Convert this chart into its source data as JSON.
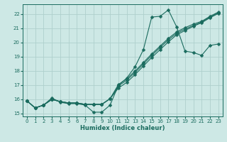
{
  "xlabel": "Humidex (Indice chaleur)",
  "xlim": [
    -0.5,
    23.5
  ],
  "ylim": [
    14.8,
    22.7
  ],
  "yticks": [
    15,
    16,
    17,
    18,
    19,
    20,
    21,
    22
  ],
  "xticks": [
    0,
    1,
    2,
    3,
    4,
    5,
    6,
    7,
    8,
    9,
    10,
    11,
    12,
    13,
    14,
    15,
    16,
    17,
    18,
    19,
    20,
    21,
    22,
    23
  ],
  "background_color": "#cde8e5",
  "grid_color": "#aed0cc",
  "line_color": "#1a6b5e",
  "series": [
    {
      "x": [
        0,
        1,
        2,
        3,
        4,
        5,
        6,
        7,
        8,
        9,
        10,
        11,
        12,
        13,
        14,
        15,
        16,
        17,
        18,
        19,
        20,
        21,
        22,
        23
      ],
      "y": [
        15.9,
        15.4,
        15.6,
        16.1,
        15.8,
        15.7,
        15.7,
        15.6,
        15.1,
        15.1,
        15.6,
        17.0,
        17.5,
        18.3,
        19.5,
        21.8,
        21.85,
        22.3,
        21.1,
        19.4,
        19.3,
        19.1,
        19.8,
        19.9
      ],
      "marker": "D",
      "markersize": 2.5
    },
    {
      "x": [
        0,
        1,
        2,
        3,
        4,
        5,
        6,
        7,
        8,
        9,
        10,
        11,
        12,
        13,
        14,
        15,
        16,
        17,
        18,
        19,
        20,
        21,
        22,
        23
      ],
      "y": [
        15.9,
        15.4,
        15.6,
        16.0,
        15.85,
        15.75,
        15.75,
        15.65,
        15.65,
        15.65,
        16.05,
        16.8,
        17.2,
        17.75,
        18.35,
        18.95,
        19.5,
        20.05,
        20.55,
        20.85,
        21.15,
        21.4,
        21.75,
        22.05
      ],
      "marker": "D",
      "markersize": 2.5
    },
    {
      "x": [
        0,
        1,
        2,
        3,
        4,
        5,
        6,
        7,
        8,
        9,
        10,
        11,
        12,
        13,
        14,
        15,
        16,
        17,
        18,
        19,
        20,
        21,
        22,
        23
      ],
      "y": [
        15.9,
        15.4,
        15.6,
        16.0,
        15.85,
        15.75,
        15.75,
        15.65,
        15.65,
        15.65,
        16.05,
        16.95,
        17.35,
        17.9,
        18.5,
        19.1,
        19.65,
        20.2,
        20.65,
        20.95,
        21.2,
        21.45,
        21.8,
        22.1
      ],
      "marker": "D",
      "markersize": 2.5
    },
    {
      "x": [
        0,
        1,
        2,
        3,
        4,
        5,
        6,
        7,
        8,
        9,
        10,
        11,
        12,
        13,
        14,
        15,
        16,
        17,
        18,
        19,
        20,
        21,
        22,
        23
      ],
      "y": [
        15.9,
        15.4,
        15.6,
        16.0,
        15.85,
        15.75,
        15.75,
        15.65,
        15.65,
        15.65,
        16.05,
        17.05,
        17.45,
        18.0,
        18.6,
        19.2,
        19.75,
        20.3,
        20.75,
        21.05,
        21.3,
        21.5,
        21.85,
        22.15
      ],
      "marker": "D",
      "markersize": 2.5
    }
  ]
}
